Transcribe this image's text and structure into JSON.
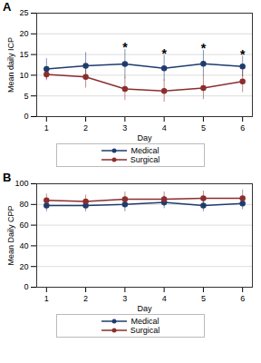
{
  "chart_data": [
    {
      "type": "line",
      "title": "A",
      "x_label": "Day",
      "y_label": "Mean daily ICP",
      "x": [
        1,
        2,
        3,
        4,
        5,
        6
      ],
      "xlim": [
        0.75,
        6.25
      ],
      "xticks": [
        1,
        2,
        3,
        4,
        5,
        6
      ],
      "ylim": [
        0,
        25
      ],
      "yticks": [
        0,
        5,
        10,
        15,
        20,
        25
      ],
      "grid": true,
      "legend": "bottom",
      "marker": "circle",
      "series": [
        {
          "name": "Medical",
          "color": "#1f3c6e",
          "values": [
            11.5,
            12.3,
            12.7,
            11.7,
            12.8,
            12.1
          ],
          "error": [
            2.5,
            3.2,
            3.5,
            3.1,
            3.2,
            2.5
          ]
        },
        {
          "name": "Surgical",
          "color": "#8b2e2e",
          "values": [
            10.2,
            9.6,
            6.7,
            6.2,
            6.9,
            8.5
          ],
          "error": [
            1.5,
            2.7,
            2.8,
            2.7,
            2.8,
            2.7
          ]
        }
      ],
      "annotations": [
        {
          "text": "*",
          "x": 3,
          "y": 16.6
        },
        {
          "text": "*",
          "x": 4,
          "y": 15.2
        },
        {
          "text": "*",
          "x": 5,
          "y": 16.4
        },
        {
          "text": "*",
          "x": 6,
          "y": 15.0
        }
      ]
    },
    {
      "type": "line",
      "title": "B",
      "x_label": "Day",
      "y_label": "Mean Daily CPP",
      "x": [
        1,
        2,
        3,
        4,
        5,
        6
      ],
      "xlim": [
        0.75,
        6.25
      ],
      "xticks": [
        1,
        2,
        3,
        4,
        5,
        6
      ],
      "ylim": [
        0,
        100
      ],
      "yticks": [
        0,
        20,
        40,
        60,
        80,
        100
      ],
      "grid": true,
      "legend": "bottom",
      "marker": "circle",
      "series": [
        {
          "name": "Medical",
          "color": "#1f3c6e",
          "values": [
            79,
            79,
            80,
            82,
            79,
            81
          ],
          "error": [
            6,
            6,
            7,
            6,
            6,
            6
          ]
        },
        {
          "name": "Surgical",
          "color": "#8b2e2e",
          "values": [
            84,
            83,
            85,
            85,
            86,
            86
          ],
          "error": [
            6,
            6,
            7,
            7,
            7,
            8
          ]
        }
      ]
    }
  ]
}
